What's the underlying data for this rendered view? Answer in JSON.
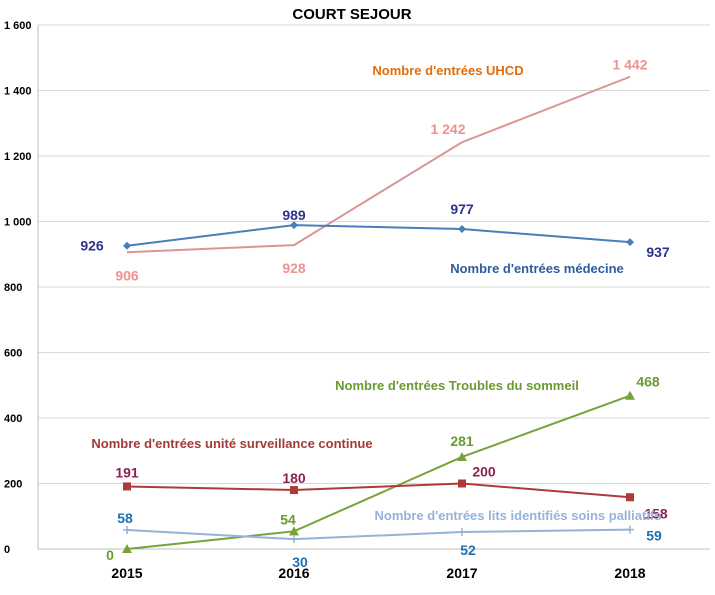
{
  "chart_data": {
    "type": "line",
    "title": "COURT SEJOUR",
    "categories": [
      "2015",
      "2016",
      "2017",
      "2018"
    ],
    "ylim": [
      0,
      1600
    ],
    "yticks": [
      0,
      200,
      400,
      600,
      800,
      1000,
      1200,
      1400,
      1600
    ],
    "ytick_labels": [
      "0",
      "200",
      "400",
      "600",
      "800",
      "1 000",
      "1 200",
      "1 400",
      "1 600"
    ],
    "grid": true,
    "legend": "none",
    "series": [
      {
        "name": "Nombre d'entrées UHCD",
        "values": [
          906,
          928,
          1242,
          1442
        ],
        "labels": [
          "906",
          "928",
          "1 242",
          "1 442"
        ],
        "color": "#d99694",
        "label_color": "#f09090",
        "name_color": "#e46c0a",
        "marker": "none"
      },
      {
        "name": "Nombre d'entrées médecine",
        "values": [
          926,
          989,
          977,
          937
        ],
        "labels": [
          "926",
          "989",
          "977",
          "937"
        ],
        "color": "#4a7ebb",
        "label_color": "#2e3192",
        "name_color": "#2e5c9e",
        "marker": "diamond"
      },
      {
        "name": "Nombre d'entrées Troubles du sommeil",
        "values": [
          0,
          54,
          281,
          468
        ],
        "labels": [
          "0",
          "54",
          "281",
          "468"
        ],
        "color": "#77a23c",
        "label_color": "#6a9a30",
        "name_color": "#6a9a30",
        "marker": "triangle"
      },
      {
        "name": "Nombre d'entrées unité surveillance continue",
        "values": [
          191,
          180,
          200,
          158
        ],
        "labels": [
          "191",
          "180",
          "200",
          "158"
        ],
        "color": "#b03a3a",
        "label_color": "#8b2252",
        "name_color": "#a33a3a",
        "marker": "square"
      },
      {
        "name": "Nombre d'entrées lits identifiés soins palliatifs",
        "values": [
          58,
          30,
          52,
          59
        ],
        "labels": [
          "58",
          "30",
          "52",
          "59"
        ],
        "color": "#95b3d7",
        "label_color": "#1f6fb2",
        "name_color": "#95b3d7",
        "marker": "plus"
      }
    ]
  }
}
